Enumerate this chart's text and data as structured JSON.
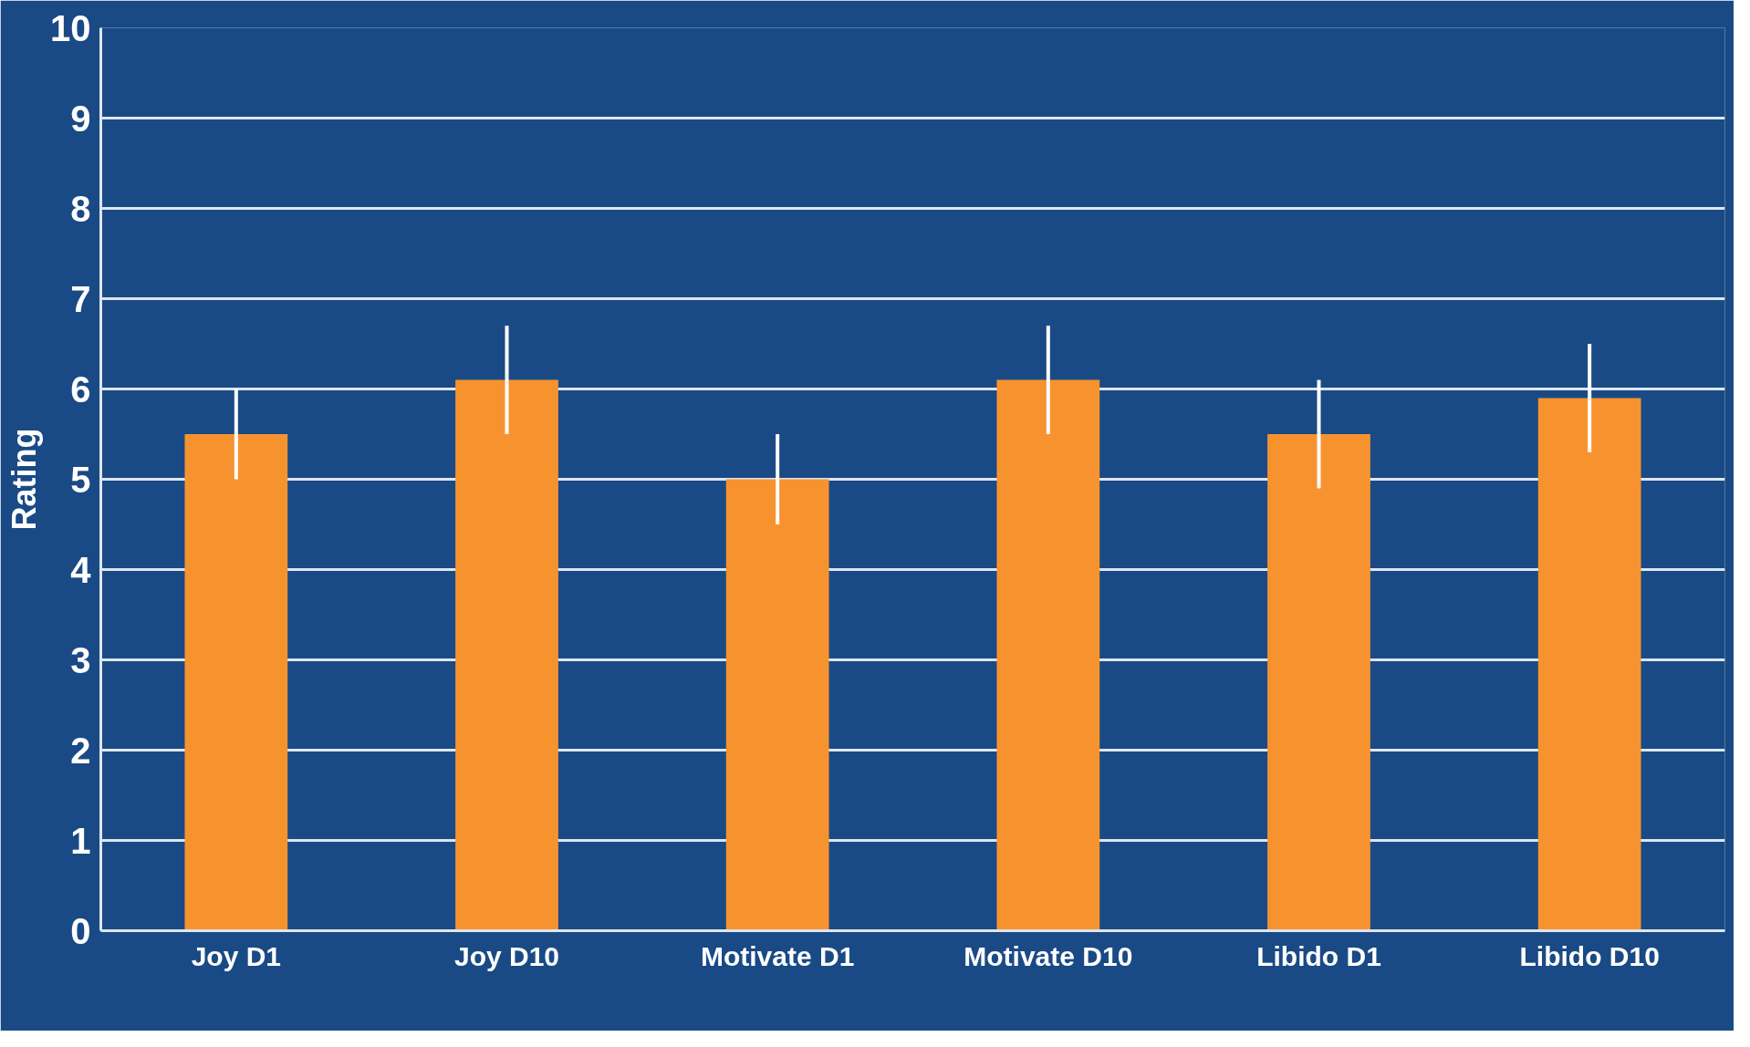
{
  "chart_data": {
    "type": "bar",
    "ylabel": "Rating",
    "categories": [
      "Joy D1",
      "Joy D10",
      "Motivate D1",
      "Motivate D10",
      "Libido D1",
      "Libido D10"
    ],
    "values": [
      5.5,
      6.1,
      5.0,
      6.1,
      5.5,
      5.9
    ],
    "errors": [
      0.5,
      0.6,
      0.5,
      0.6,
      0.6,
      0.6
    ],
    "color": "#f7932f",
    "ylim": [
      0,
      10
    ],
    "yticks": [
      0,
      1,
      2,
      3,
      4,
      5,
      6,
      7,
      8,
      9,
      10
    ],
    "grid": "y"
  }
}
